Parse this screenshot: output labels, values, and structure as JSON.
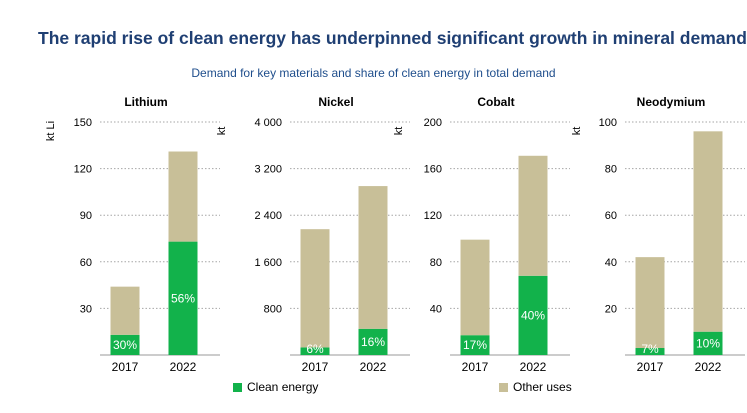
{
  "title": "The rapid rise of clean energy has underpinned significant growth in mineral demand",
  "subtitle": "Demand for key materials and share of clean energy in total demand",
  "colors": {
    "clean_energy": "#12b24b",
    "other_uses": "#c8bf98",
    "grid": "#a6a6a6"
  },
  "legend": [
    {
      "label": "Clean energy",
      "color": "#12b24b"
    },
    {
      "label": "Other uses",
      "color": "#c8bf98"
    }
  ],
  "chart_data": [
    {
      "type": "bar",
      "stacked": true,
      "title": "Lithium",
      "ylabel": "kt Li",
      "ylim": [
        0,
        150
      ],
      "yticks": [
        30,
        60,
        90,
        120,
        150
      ],
      "ytick_labels": [
        "30",
        "60",
        "90",
        "120",
        "150"
      ],
      "categories": [
        "2017",
        "2022"
      ],
      "series": [
        {
          "name": "Clean energy",
          "values": [
            13,
            73
          ]
        },
        {
          "name": "Other uses",
          "values": [
            31,
            58
          ]
        }
      ],
      "data_labels": [
        "30%",
        "56%"
      ],
      "grid": true
    },
    {
      "type": "bar",
      "stacked": true,
      "title": "Nickel",
      "ylabel": "kt",
      "ylim": [
        0,
        4000
      ],
      "yticks": [
        800,
        1600,
        2400,
        3200,
        4000
      ],
      "ytick_labels": [
        "800",
        "1 600",
        "2 400",
        "3 200",
        "4 000"
      ],
      "categories": [
        "2017",
        "2022"
      ],
      "series": [
        {
          "name": "Clean energy",
          "values": [
            130,
            450
          ]
        },
        {
          "name": "Other uses",
          "values": [
            2030,
            2450
          ]
        }
      ],
      "data_labels": [
        "6%",
        "16%"
      ],
      "grid": true
    },
    {
      "type": "bar",
      "stacked": true,
      "title": "Cobalt",
      "ylabel": "kt",
      "ylim": [
        0,
        200
      ],
      "yticks": [
        40,
        80,
        120,
        160,
        200
      ],
      "ytick_labels": [
        "40",
        "80",
        "120",
        "160",
        "200"
      ],
      "categories": [
        "2017",
        "2022"
      ],
      "series": [
        {
          "name": "Clean energy",
          "values": [
            17,
            68
          ]
        },
        {
          "name": "Other uses",
          "values": [
            82,
            103
          ]
        }
      ],
      "data_labels": [
        "17%",
        "40%"
      ],
      "grid": true
    },
    {
      "type": "bar",
      "stacked": true,
      "title": "Neodymium",
      "ylabel": "kt",
      "ylim": [
        0,
        100
      ],
      "yticks": [
        20,
        40,
        60,
        80,
        100
      ],
      "ytick_labels": [
        "20",
        "40",
        "60",
        "80",
        "100"
      ],
      "categories": [
        "2017",
        "2022"
      ],
      "series": [
        {
          "name": "Clean energy",
          "values": [
            3,
            10
          ]
        },
        {
          "name": "Other uses",
          "values": [
            39,
            86
          ]
        }
      ],
      "data_labels": [
        "7%",
        "10%"
      ],
      "grid": true
    }
  ]
}
